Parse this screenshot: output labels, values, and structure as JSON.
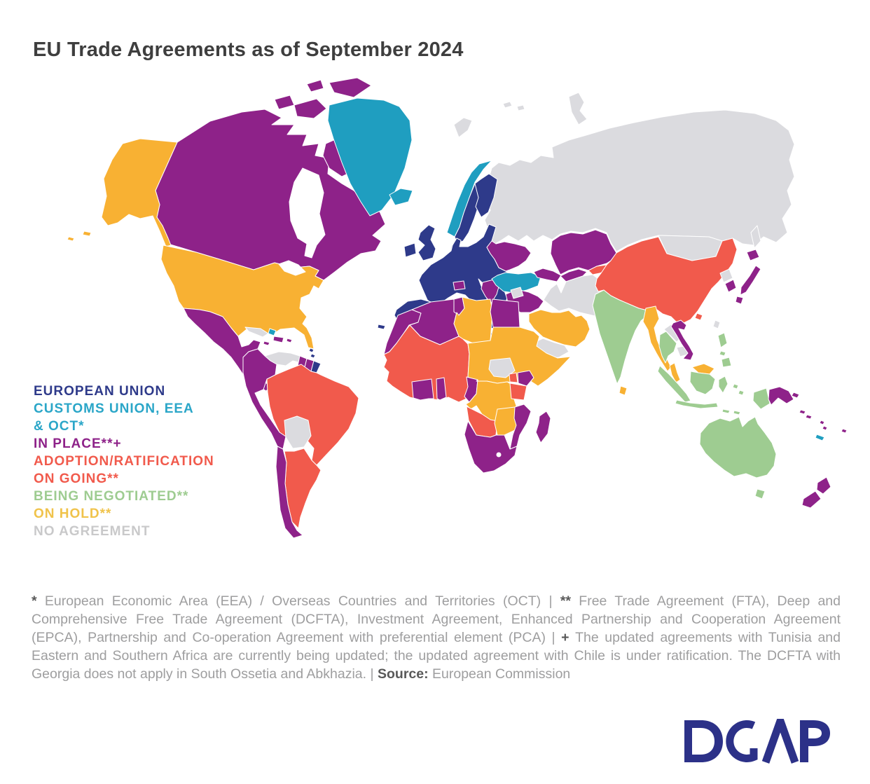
{
  "title": "EU Trade Agreements as of September 2024",
  "statuses": {
    "eu": {
      "label": "EUROPEAN UNION",
      "color": "#2e3a8a"
    },
    "customs": {
      "label": "CUSTOMS UNION, EEA & OCT*",
      "color": "#1f9ec0",
      "legend_color": "#2aa6c8"
    },
    "in_place": {
      "label": "IN PLACE**+",
      "color": "#8e2289"
    },
    "ratification": {
      "label": "ADOPTION/RATIFICATION ON GOING**",
      "color": "#f15a4c"
    },
    "negotiated": {
      "label": "BEING NEGOTIATED**",
      "color": "#9ecc91"
    },
    "on_hold": {
      "label": "ON HOLD**",
      "color": "#f8b133",
      "legend_color": "#f0c34b"
    },
    "none": {
      "label": "NO AGREEMENT",
      "color": "#dbdbdf",
      "legend_color": "#c9c9ca"
    }
  },
  "legend": {
    "lines": [
      {
        "text": "EUROPEAN UNION",
        "status": "eu"
      },
      {
        "text": "CUSTOMS UNION, EEA",
        "status": "customs"
      },
      {
        "text": "& OCT*",
        "status": "customs"
      },
      {
        "text": "IN PLACE**+",
        "status": "in_place"
      },
      {
        "text": "ADOPTION/RATIFICATION",
        "status": "ratification"
      },
      {
        "text": "ON GOING**",
        "status": "ratification"
      },
      {
        "text": "BEING NEGOTIATED**",
        "status": "negotiated"
      },
      {
        "text": "ON HOLD**",
        "status": "on_hold"
      },
      {
        "text": "NO AGREEMENT",
        "status": "none"
      }
    ]
  },
  "regions": {
    "alaska": "on_hold",
    "usa": "on_hold",
    "canada": "in_place",
    "greenland": "customs",
    "iceland": "customs",
    "norway": "customs",
    "mexico_central_america": "in_place",
    "cuba": "none",
    "bahamas": "customs",
    "hispaniola": "in_place",
    "jamaica": "in_place",
    "puerto_rico": "in_place",
    "antilles_eu": "eu",
    "trinidad": "ratification",
    "venezuela": "none",
    "guyana": "in_place",
    "suriname": "in_place",
    "french_guiana": "eu",
    "andean": "in_place",
    "chile": "in_place",
    "brazil": "ratification",
    "bolivia": "none",
    "argentina_block": "ratification",
    "uk_ireland": "eu",
    "eu_mainland": "eu",
    "iberia": "eu",
    "nordics_eu": "eu",
    "eu_islands": "eu",
    "switzerland": "in_place",
    "balkans": "in_place",
    "ukraine": "in_place",
    "turkey": "customs",
    "cyprus": "customs",
    "caucasus": "in_place",
    "russia": "none",
    "svalbard": "none",
    "novaya_zemlya": "none",
    "mongolia": "none",
    "kazakhstan": "in_place",
    "uzbek_tajik": "in_place",
    "kyrgyzstan": "ratification",
    "iran_block": "none",
    "syria": "none",
    "levant_iraq": "in_place",
    "saudi_gcc": "on_hold",
    "yemen": "none",
    "egypt": "in_place",
    "morocco": "in_place",
    "algeria": "in_place",
    "tunisia": "in_place",
    "libya": "on_hold",
    "west_africa": "ratification",
    "ghana_cdi": "in_place",
    "togo_benin": "in_place",
    "cameroon": "in_place",
    "chad_sudan_horn": "on_hold",
    "south_sudan": "none",
    "central_africa": "on_hold",
    "uganda": "ratification",
    "kenya": "in_place",
    "tanzania": "ratification",
    "angola": "ratification",
    "zambia_zimbabwe": "on_hold",
    "mozambique": "in_place",
    "southern_africa": "in_place",
    "madagascar": "in_place",
    "china": "ratification",
    "hainan": "ratification",
    "taiwan": "none",
    "north_korea": "none",
    "south_korea": "in_place",
    "japan": "in_place",
    "india": "negotiated",
    "sri_lanka": "on_hold",
    "myanmar": "on_hold",
    "laos": "none",
    "thailand": "negotiated",
    "cambodia": "none",
    "vietnam": "in_place",
    "malaysia": "on_hold",
    "indonesia": "negotiated",
    "philippines": "negotiated",
    "png": "in_place",
    "australia": "negotiated",
    "new_zealand": "in_place",
    "new_caledonia": "customs",
    "pacific_in_place": "in_place"
  },
  "footnote": {
    "segments": [
      {
        "t": "* ",
        "b": true
      },
      {
        "t": "European Economic Area (EEA) / Overseas Countries and Territories (OCT)"
      },
      {
        "t": "  |  "
      },
      {
        "t": "** ",
        "b": true
      },
      {
        "t": "Free Trade Agreement (FTA), Deep and Comprehensive Free Trade Agreement (DCFTA), Investment Agreement, Enhanced Partnership and Cooperation Agreement (EPCA), Partnership and Co-operation Agreement with preferential element (PCA)"
      },
      {
        "t": "  |  "
      },
      {
        "t": "+ ",
        "b": true
      },
      {
        "t": "The updated agreements with Tunisia and Eastern and Southern Africa are currently being updated; the updated agreement with Chile is under ratification. The DCFTA with Georgia does not apply in South Ossetia and Abkhazia."
      },
      {
        "t": "  |  "
      },
      {
        "t": "Source:",
        "b": true
      },
      {
        "t": " European Commission"
      }
    ]
  },
  "logo": {
    "text": "DGAP",
    "color": "#2c3188"
  }
}
